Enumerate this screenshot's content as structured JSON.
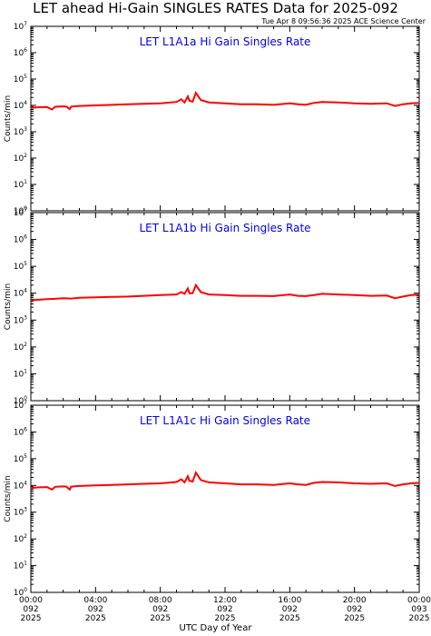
{
  "page": {
    "title": "LET ahead Hi-Gain SINGLES RATES Data for 2025-092",
    "timestamp": "Tue Apr  8 09:56:36 2025 ACE Science Center",
    "xlabel": "UTC Day of Year"
  },
  "colors": {
    "series": "#ff0000",
    "panel_title": "#0000ee",
    "axes": "#000000"
  },
  "chart_data": [
    {
      "type": "line",
      "title": "LET L1A1a Hi Gain Singles Rate",
      "ylabel": "Counts/min",
      "yscale": "log",
      "ylim": [
        1,
        10000000
      ],
      "xlim": [
        0,
        24
      ],
      "series": [
        {
          "x": [
            0,
            0.5,
            1,
            1.3,
            1.5,
            1.8,
            2,
            2.2,
            2.4,
            2.5,
            3,
            4,
            5,
            6,
            7,
            8,
            9,
            9.3,
            9.5,
            9.7,
            9.8,
            10,
            10.2,
            10.5,
            11,
            12,
            13,
            14,
            15,
            16,
            16.5,
            17,
            17.5,
            18,
            19,
            20,
            21,
            22,
            22.5,
            23,
            23.5,
            24
          ],
          "values": [
            8000,
            8500,
            8700,
            7000,
            8900,
            9100,
            9200,
            9000,
            7200,
            9000,
            9500,
            10000,
            10500,
            11000,
            11500,
            12000,
            13500,
            17000,
            13000,
            22000,
            15000,
            14000,
            30000,
            16000,
            13000,
            12000,
            11000,
            11000,
            10500,
            12000,
            11000,
            10500,
            12500,
            13500,
            13000,
            12000,
            11500,
            12000,
            9500,
            11000,
            12000,
            12500
          ]
        }
      ]
    },
    {
      "type": "line",
      "title": "LET L1A1b Hi Gain Singles Rate",
      "ylabel": "Counts/min",
      "yscale": "log",
      "ylim": [
        1,
        10000000
      ],
      "xlim": [
        0,
        24
      ],
      "series": [
        {
          "x": [
            0,
            0.5,
            1,
            1.5,
            2,
            2.5,
            3,
            4,
            5,
            6,
            7,
            8,
            9,
            9.3,
            9.5,
            9.7,
            9.8,
            10,
            10.2,
            10.5,
            11,
            12,
            13,
            14,
            15,
            16,
            16.5,
            17,
            17.5,
            18,
            19,
            20,
            21,
            22,
            22.5,
            23,
            23.5,
            24
          ],
          "values": [
            5500,
            5700,
            6000,
            6200,
            6500,
            6300,
            6800,
            7000,
            7300,
            7500,
            8000,
            8500,
            9000,
            11000,
            9500,
            15000,
            10000,
            10000,
            20000,
            11000,
            9000,
            8500,
            8000,
            8000,
            7800,
            9000,
            8000,
            7800,
            8500,
            9500,
            9000,
            8500,
            8000,
            8200,
            6500,
            7500,
            8500,
            8800
          ]
        }
      ]
    },
    {
      "type": "line",
      "title": "LET L1A1c Hi Gain Singles Rate",
      "ylabel": "Counts/min",
      "yscale": "log",
      "ylim": [
        1,
        10000000
      ],
      "xlim": [
        0,
        24
      ],
      "series": [
        {
          "x": [
            0,
            0.5,
            1,
            1.3,
            1.5,
            1.8,
            2,
            2.2,
            2.4,
            2.5,
            3,
            4,
            5,
            6,
            7,
            8,
            9,
            9.3,
            9.5,
            9.7,
            9.8,
            10,
            10.2,
            10.5,
            11,
            12,
            13,
            14,
            15,
            16,
            16.5,
            17,
            17.5,
            18,
            19,
            20,
            21,
            22,
            22.5,
            23,
            23.5,
            24
          ],
          "values": [
            8000,
            8500,
            8700,
            7000,
            8900,
            9100,
            9200,
            9000,
            7000,
            9000,
            9500,
            10000,
            10500,
            11000,
            11500,
            12000,
            13500,
            17000,
            13000,
            22000,
            15000,
            14000,
            30000,
            16000,
            13000,
            12000,
            11000,
            11000,
            10500,
            12000,
            11000,
            10500,
            12500,
            13500,
            13000,
            12000,
            11500,
            12000,
            9500,
            11000,
            12000,
            12500
          ]
        }
      ]
    }
  ],
  "x_ticks": [
    {
      "hour": 0,
      "lines": [
        "00:00",
        "092",
        "2025"
      ]
    },
    {
      "hour": 4,
      "lines": [
        "04:00",
        "092",
        "2025"
      ]
    },
    {
      "hour": 8,
      "lines": [
        "08:00",
        "092",
        "2025"
      ]
    },
    {
      "hour": 12,
      "lines": [
        "12:00",
        "092",
        "2025"
      ]
    },
    {
      "hour": 16,
      "lines": [
        "16:00",
        "092",
        "2025"
      ]
    },
    {
      "hour": 20,
      "lines": [
        "20:00",
        "092",
        "2025"
      ]
    },
    {
      "hour": 24,
      "lines": [
        "00:00",
        "093",
        "2025"
      ]
    }
  ],
  "y_tick_exponents": [
    0,
    1,
    2,
    3,
    4,
    5,
    6,
    7
  ]
}
